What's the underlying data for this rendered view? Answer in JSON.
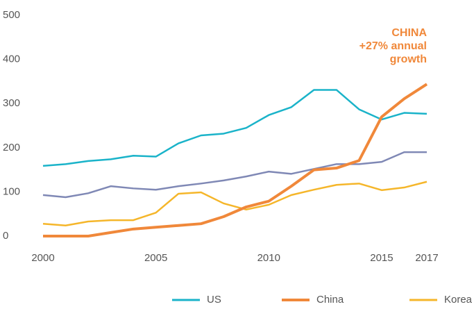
{
  "chart_data": {
    "type": "line",
    "x": [
      2000,
      2001,
      2002,
      2003,
      2004,
      2005,
      2006,
      2007,
      2008,
      2009,
      2010,
      2011,
      2012,
      2013,
      2014,
      2015,
      2016,
      2017
    ],
    "xlim": [
      2000,
      2017
    ],
    "xticks": [
      2000,
      2005,
      2010,
      2015,
      2017
    ],
    "ylim": [
      0,
      500
    ],
    "yticks": [
      0,
      100,
      200,
      300,
      400,
      500
    ],
    "series": [
      {
        "color": "#7f88b5",
        "values": [
          93,
          88,
          97,
          113,
          108,
          105,
          113,
          119,
          126,
          135,
          146,
          141,
          152,
          163,
          163,
          168,
          190,
          190
        ]
      },
      {
        "name": "Korea",
        "color": "#f5b62a",
        "values": [
          28,
          24,
          33,
          36,
          36,
          53,
          96,
          99,
          74,
          60,
          71,
          93,
          105,
          116,
          119,
          104,
          110,
          123
        ]
      },
      {
        "name": "US",
        "color": "#1ab3c9",
        "values": [
          159,
          163,
          170,
          174,
          182,
          180,
          210,
          228,
          232,
          245,
          274,
          292,
          331,
          331,
          287,
          264,
          279,
          277
        ]
      },
      {
        "name": "China",
        "color": "#f0883a",
        "values": [
          0,
          0,
          0,
          8,
          16,
          20,
          24,
          28,
          44,
          66,
          79,
          113,
          150,
          154,
          171,
          270,
          311,
          344
        ]
      }
    ],
    "legend_order": [
      "US",
      "China",
      "Korea"
    ],
    "annotation": [
      "CHINA",
      "+27% annual",
      "growth"
    ],
    "annotation_color": "#f0883a"
  }
}
